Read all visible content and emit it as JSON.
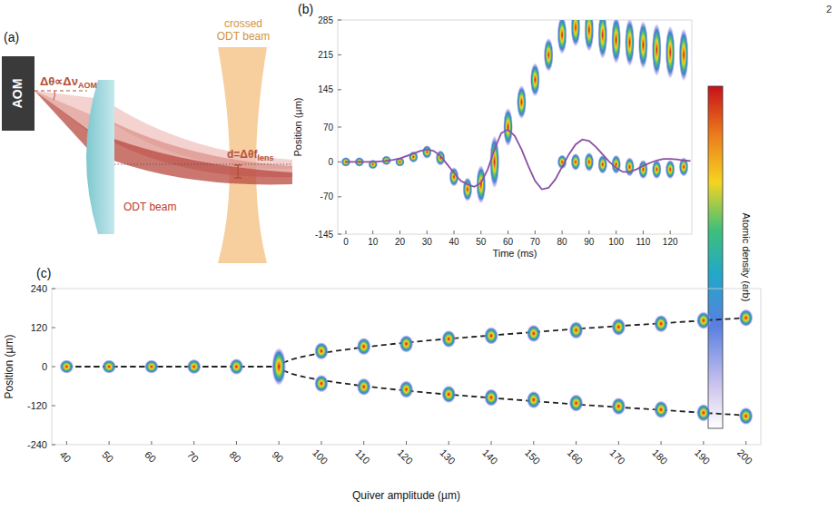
{
  "page_number": "2",
  "diagram": {
    "panel_label": "(a)",
    "device_label": "AOM",
    "angle_label": {
      "main": "Δθ∝Δν",
      "sub": "AOM"
    },
    "displacement_label": {
      "main": "d=Δθf",
      "sub": "lens"
    },
    "beam_label": "ODT beam",
    "crossed_beam_label": "crossed ODT beam"
  },
  "chart_data": [
    {
      "type": "scatter",
      "panel_label": "(b)",
      "x_label": "Time (ms)",
      "y_label": "Position (µm)",
      "colorbar_label": "Atomic density (arb)",
      "grid": false,
      "xlim": [
        -3,
        128
      ],
      "ylim": [
        -145,
        285
      ],
      "xticks": [
        0,
        10,
        20,
        30,
        40,
        50,
        60,
        70,
        80,
        90,
        100,
        110,
        120
      ],
      "yticks": [
        -145,
        -70,
        0,
        70,
        145,
        215,
        285
      ],
      "series": [
        {
          "type": "scatter",
          "marker": "ellipse",
          "x": [
            0,
            5,
            10,
            15,
            20,
            25,
            30,
            35,
            40,
            45,
            50,
            55,
            60,
            65,
            70,
            75,
            80,
            85,
            90,
            95,
            100,
            105,
            110,
            115,
            120,
            125
          ],
          "values": [
            0,
            0,
            -5,
            3,
            0,
            10,
            20,
            8,
            -30,
            -55,
            -45,
            0,
            70,
            120,
            165,
            215,
            0,
            0,
            0,
            -5,
            -5,
            -10,
            -15,
            -15,
            -15,
            -10
          ],
          "extent": [
            10,
            10,
            10,
            10,
            10,
            12,
            14,
            16,
            20,
            25,
            40,
            55,
            40,
            35,
            35,
            35,
            15,
            18,
            20,
            20,
            20,
            20,
            20,
            20,
            20,
            20
          ]
        },
        {
          "type": "scatter",
          "marker": "ellipse",
          "x": [
            80,
            85,
            90,
            95,
            100,
            105,
            110,
            115,
            120,
            125
          ],
          "values": [
            255,
            270,
            265,
            255,
            245,
            240,
            235,
            225,
            220,
            215
          ],
          "extent": [
            40,
            40,
            45,
            50,
            50,
            50,
            50,
            55,
            55,
            55
          ]
        },
        {
          "type": "line",
          "color": "#8a4fa8",
          "line_style": "solid",
          "x": [
            0,
            2.5,
            5,
            7.5,
            10,
            12.5,
            15,
            17.5,
            20,
            22.5,
            25,
            27.5,
            30,
            32.5,
            35,
            37.5,
            40,
            42.5,
            45,
            47.5,
            50,
            52.5,
            55,
            57.5,
            60,
            62.5,
            65,
            67.5,
            70,
            72.5,
            75,
            77.5,
            80,
            82.5,
            85,
            87.5,
            90,
            92.5,
            95,
            97.5,
            100,
            102.5,
            105,
            107.5,
            110,
            112.5,
            115,
            117.5,
            120,
            122.5,
            125,
            127.5
          ],
          "values": [
            0,
            0,
            0,
            0,
            0,
            1,
            2,
            4,
            7,
            12,
            17,
            22,
            25,
            22,
            12,
            -5,
            -22,
            -38,
            -45,
            -50,
            -42,
            -15,
            25,
            58,
            65,
            52,
            25,
            -8,
            -38,
            -55,
            -52,
            -35,
            -10,
            15,
            35,
            45,
            42,
            30,
            15,
            0,
            -12,
            -20,
            -20,
            -15,
            -8,
            -2,
            3,
            6,
            6,
            5,
            3,
            2
          ]
        }
      ]
    },
    {
      "type": "scatter",
      "panel_label": "(c)",
      "x_label": "Quiver amplitude (µm)",
      "y_label": "Position (µm)",
      "grid": false,
      "xlim": [
        36.5,
        203.5
      ],
      "ylim": [
        -240,
        240
      ],
      "xticks": [
        40,
        50,
        60,
        70,
        80,
        90,
        100,
        110,
        120,
        130,
        140,
        150,
        160,
        170,
        180,
        190,
        200
      ],
      "yticks": [
        -240,
        -120,
        0,
        120,
        240
      ],
      "series": [
        {
          "type": "line",
          "color": "#222222",
          "line_style": "dashed",
          "x": [
            40,
            90,
            91,
            93,
            96,
            100,
            110,
            120,
            130,
            140,
            150,
            160,
            170,
            180,
            190,
            200
          ],
          "values": [
            0,
            0,
            12,
            22,
            32,
            42,
            60,
            74,
            86,
            96,
            106,
            116,
            125,
            133,
            142,
            150
          ]
        },
        {
          "type": "line",
          "color": "#222222",
          "line_style": "dashed",
          "x": [
            40,
            90,
            91,
            93,
            96,
            100,
            110,
            120,
            130,
            140,
            150,
            160,
            170,
            180,
            190,
            200
          ],
          "values": [
            0,
            0,
            -12,
            -22,
            -32,
            -42,
            -60,
            -74,
            -86,
            -96,
            -106,
            -116,
            -125,
            -133,
            -142,
            -150
          ]
        },
        {
          "type": "scatter",
          "marker": "ellipse",
          "x": [
            40,
            50,
            60,
            70,
            80,
            90,
            100,
            110,
            120,
            130,
            140,
            150,
            160,
            170,
            180,
            190,
            200
          ],
          "values": [
            0,
            0,
            0,
            0,
            0,
            0,
            48,
            62,
            70,
            85,
            95,
            102,
            112,
            122,
            132,
            142,
            150
          ],
          "extent": [
            22,
            22,
            22,
            24,
            26,
            60,
            28,
            28,
            28,
            28,
            28,
            28,
            28,
            28,
            28,
            28,
            28
          ]
        },
        {
          "type": "scatter",
          "marker": "ellipse",
          "x": [
            100,
            110,
            120,
            130,
            140,
            150,
            160,
            170,
            180,
            190,
            200
          ],
          "values": [
            -52,
            -62,
            -70,
            -85,
            -95,
            -102,
            -112,
            -122,
            -132,
            -142,
            -152
          ],
          "extent": [
            28,
            28,
            28,
            28,
            28,
            28,
            28,
            28,
            28,
            28,
            28
          ]
        }
      ]
    }
  ]
}
